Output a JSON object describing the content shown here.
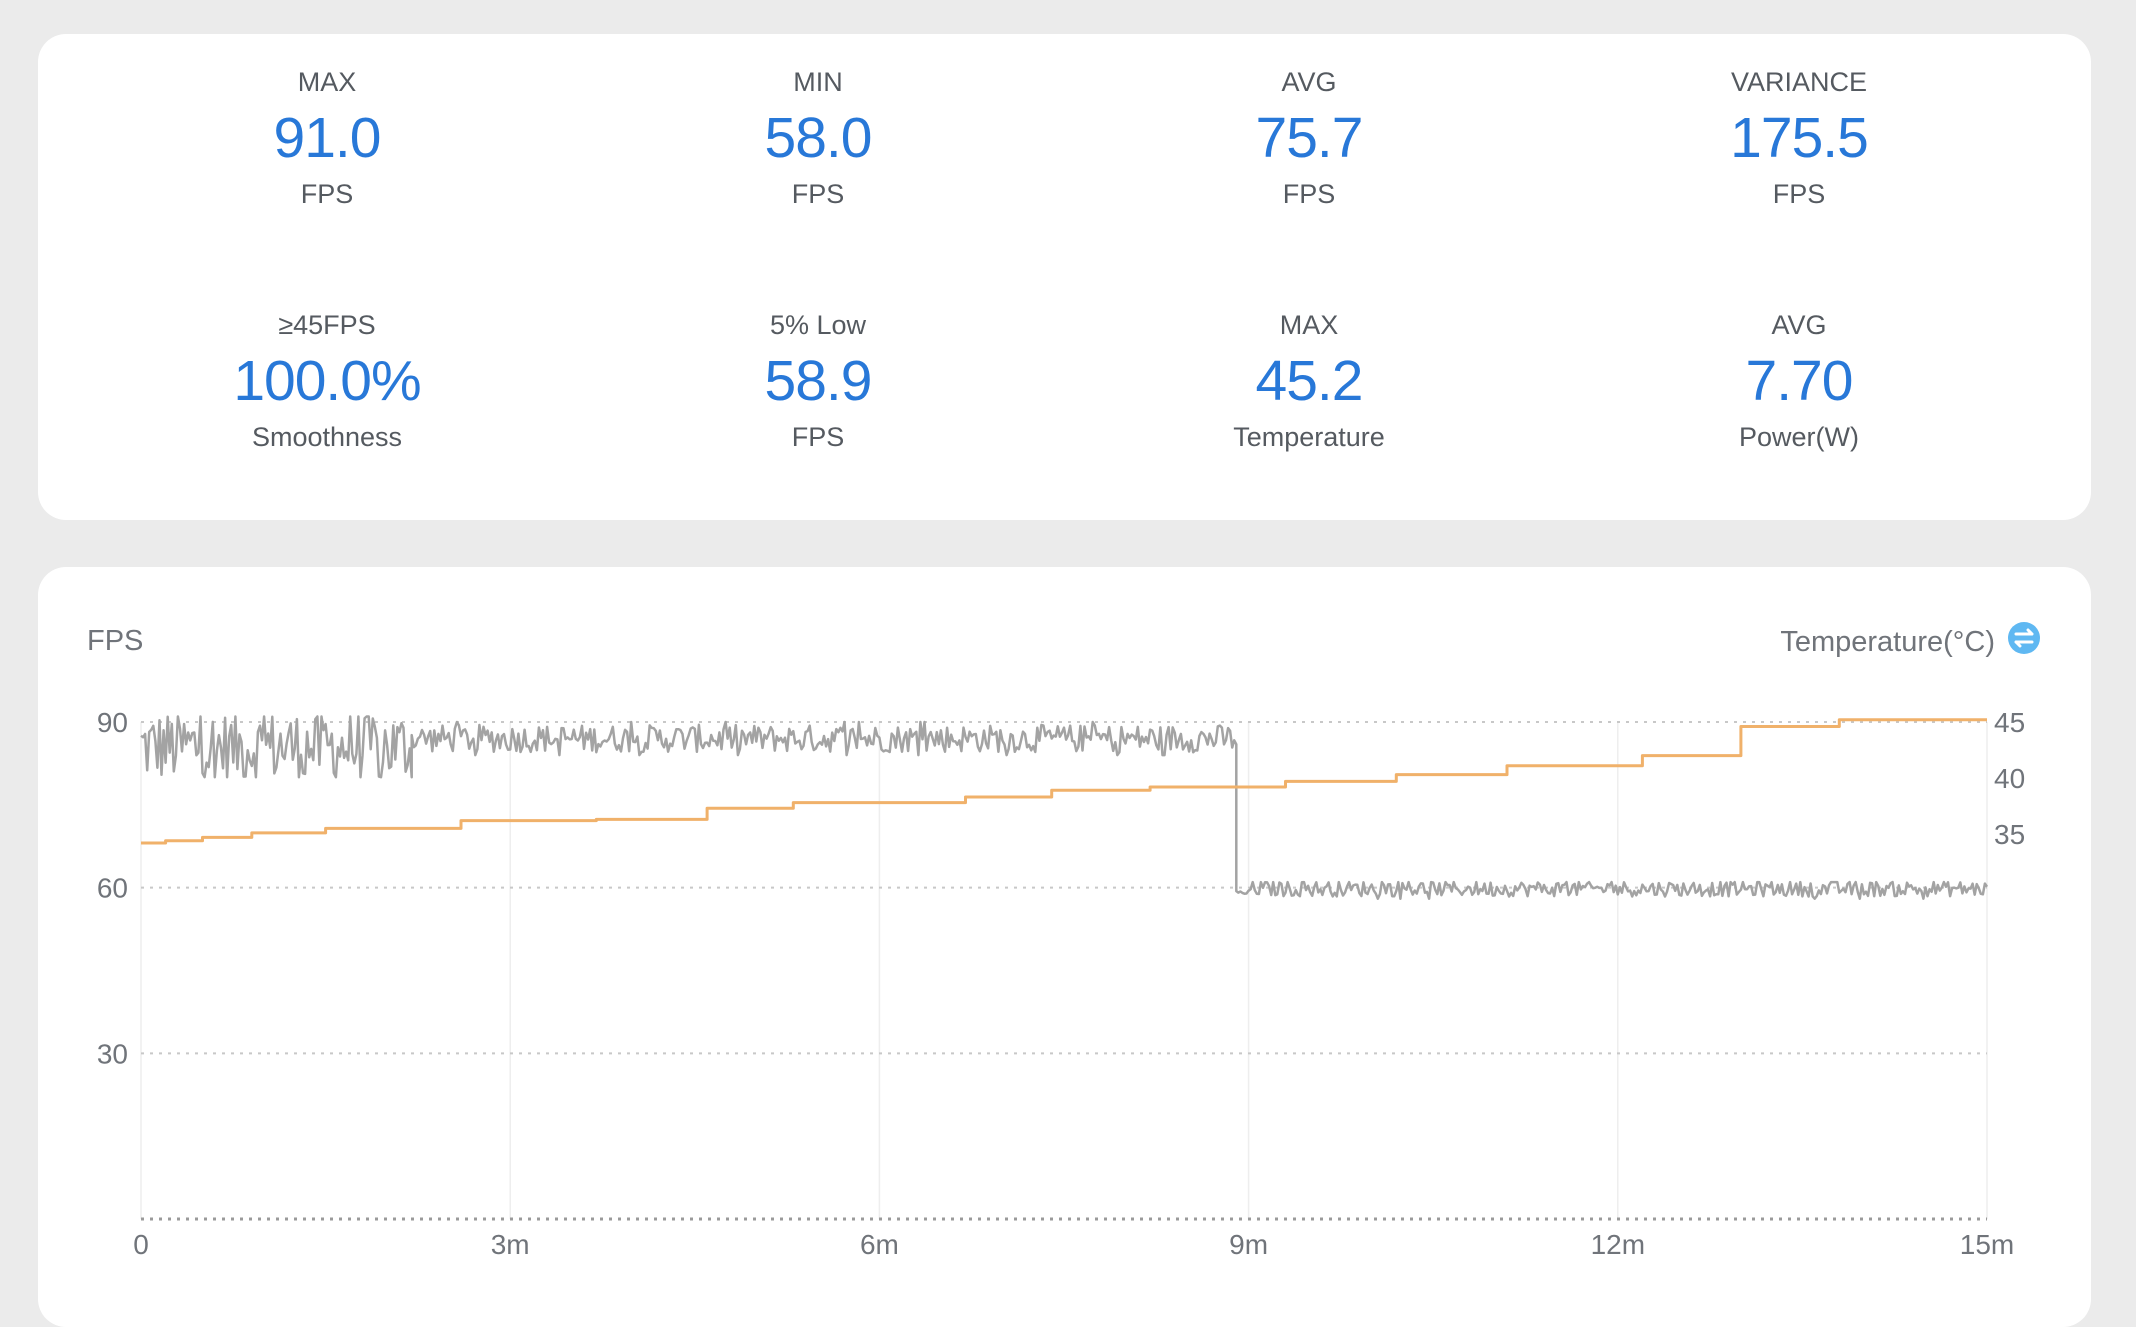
{
  "stats": [
    {
      "label": "MAX",
      "value": "91.0",
      "unit": "FPS"
    },
    {
      "label": "MIN",
      "value": "58.0",
      "unit": "FPS"
    },
    {
      "label": "AVG",
      "value": "75.7",
      "unit": "FPS"
    },
    {
      "label": "VARIANCE",
      "value": "175.5",
      "unit": "FPS"
    },
    {
      "label": "≥45FPS",
      "value": "100.0%",
      "unit": "Smoothness"
    },
    {
      "label": "5% Low",
      "value": "58.9",
      "unit": "FPS"
    },
    {
      "label": "MAX",
      "value": "45.2",
      "unit": "Temperature"
    },
    {
      "label": "AVG",
      "value": "7.70",
      "unit": "Power(W)"
    }
  ],
  "colors": {
    "accent": "#2878d8",
    "fps_line": "#a3a3a3",
    "temperature_line": "#f0b16a",
    "toggle_icon": "#5fb8f2"
  },
  "chart_data": {
    "type": "line",
    "left_axis_title": "FPS",
    "right_axis_title": "Temperature(°C)",
    "right_axis_icon": "toggle-icon",
    "x_ticks": [
      "0",
      "3m",
      "6m",
      "9m",
      "12m",
      "15m"
    ],
    "x_range_minutes": [
      0,
      15
    ],
    "y_left_ticks": [
      "90",
      "60",
      "30"
    ],
    "y_left_range": [
      0,
      90
    ],
    "y_right_ticks": [
      "45",
      "40",
      "35"
    ],
    "y_right_range": [
      35,
      45
    ],
    "grid": "horizontal dotted, vertical faint",
    "series": [
      {
        "axis": "left",
        "color": "#a3a3a3",
        "segments": [
          {
            "x_start_min": 0.0,
            "x_end_min": 2.2,
            "base": 85.5,
            "jitter": 6.5,
            "extremes": [
              91,
              80
            ]
          },
          {
            "x_start_min": 2.2,
            "x_end_min": 8.9,
            "base": 87.0,
            "jitter": 2.5,
            "extremes": [
              90,
              84
            ]
          },
          {
            "x_start_min": 8.9,
            "x_end_min": 9.0,
            "base": 59.0,
            "jitter": 0.5,
            "extremes": [
              60,
              58
            ]
          },
          {
            "x_start_min": 9.0,
            "x_end_min": 15.0,
            "base": 59.8,
            "jitter": 1.4,
            "extremes": [
              61,
              58
            ]
          }
        ]
      },
      {
        "axis": "right",
        "color": "#f0b16a",
        "steps": [
          [
            0.0,
            34.2
          ],
          [
            0.2,
            34.4
          ],
          [
            0.5,
            34.7
          ],
          [
            0.9,
            35.1
          ],
          [
            1.5,
            35.5
          ],
          [
            2.6,
            36.2
          ],
          [
            3.7,
            36.3
          ],
          [
            4.6,
            37.3
          ],
          [
            5.3,
            37.8
          ],
          [
            6.7,
            38.3
          ],
          [
            7.4,
            38.9
          ],
          [
            8.2,
            39.2
          ],
          [
            9.3,
            39.7
          ],
          [
            10.2,
            40.3
          ],
          [
            11.1,
            41.1
          ],
          [
            12.2,
            42.0
          ],
          [
            13.0,
            44.6
          ],
          [
            13.8,
            45.2
          ],
          [
            15.0,
            45.2
          ]
        ]
      }
    ]
  }
}
